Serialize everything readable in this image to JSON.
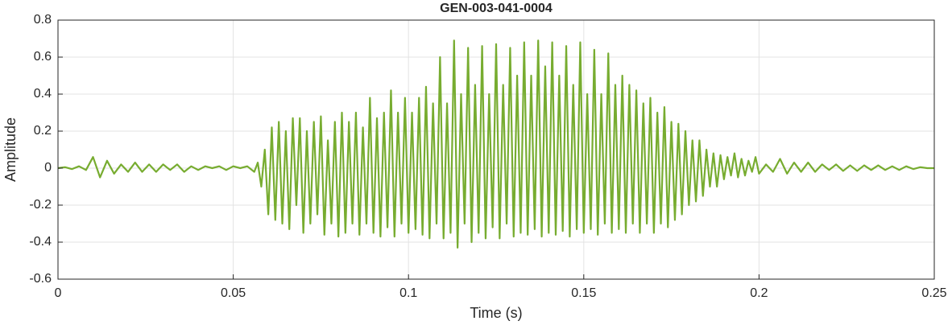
{
  "chart_data": {
    "type": "line",
    "title": "GEN-003-041-0004",
    "x_label": "Time (s)",
    "y_label": "Amplitude",
    "color": "#77ac30",
    "grid": true,
    "xlim": [
      0,
      0.25
    ],
    "xticks": [
      0,
      0.05,
      0.1,
      0.15,
      0.2,
      0.25
    ],
    "ylim": [
      -0.6,
      0.8
    ],
    "yticks": [
      -0.6,
      -0.4,
      -0.2,
      0,
      0.2,
      0.4,
      0.6,
      0.8
    ],
    "x": [
      0,
      0.002,
      0.004,
      0.006,
      0.008,
      0.01,
      0.012,
      0.014,
      0.016,
      0.018,
      0.02,
      0.022,
      0.024,
      0.026,
      0.028,
      0.03,
      0.032,
      0.034,
      0.036,
      0.038,
      0.04,
      0.042,
      0.044,
      0.046,
      0.048,
      0.05,
      0.052,
      0.054,
      0.056,
      0.057,
      0.058,
      0.059,
      0.06,
      0.061,
      0.062,
      0.063,
      0.064,
      0.065,
      0.066,
      0.067,
      0.068,
      0.069,
      0.07,
      0.071,
      0.072,
      0.073,
      0.074,
      0.075,
      0.076,
      0.077,
      0.078,
      0.079,
      0.08,
      0.081,
      0.082,
      0.083,
      0.084,
      0.085,
      0.086,
      0.087,
      0.088,
      0.089,
      0.09,
      0.091,
      0.092,
      0.093,
      0.094,
      0.095,
      0.096,
      0.097,
      0.098,
      0.099,
      0.1,
      0.101,
      0.102,
      0.103,
      0.104,
      0.105,
      0.106,
      0.107,
      0.108,
      0.109,
      0.11,
      0.111,
      0.112,
      0.113,
      0.114,
      0.115,
      0.116,
      0.117,
      0.118,
      0.119,
      0.12,
      0.121,
      0.122,
      0.123,
      0.124,
      0.125,
      0.126,
      0.127,
      0.128,
      0.129,
      0.13,
      0.131,
      0.132,
      0.133,
      0.134,
      0.135,
      0.136,
      0.137,
      0.138,
      0.139,
      0.14,
      0.141,
      0.142,
      0.143,
      0.144,
      0.145,
      0.146,
      0.147,
      0.148,
      0.149,
      0.15,
      0.151,
      0.152,
      0.153,
      0.154,
      0.155,
      0.156,
      0.157,
      0.158,
      0.159,
      0.16,
      0.161,
      0.162,
      0.163,
      0.164,
      0.165,
      0.166,
      0.167,
      0.168,
      0.169,
      0.17,
      0.171,
      0.172,
      0.173,
      0.174,
      0.175,
      0.176,
      0.177,
      0.178,
      0.179,
      0.18,
      0.181,
      0.182,
      0.183,
      0.184,
      0.185,
      0.186,
      0.187,
      0.188,
      0.189,
      0.19,
      0.191,
      0.192,
      0.193,
      0.194,
      0.195,
      0.196,
      0.197,
      0.198,
      0.199,
      0.2,
      0.202,
      0.204,
      0.206,
      0.208,
      0.21,
      0.212,
      0.214,
      0.216,
      0.218,
      0.22,
      0.222,
      0.224,
      0.226,
      0.228,
      0.23,
      0.232,
      0.234,
      0.236,
      0.238,
      0.24,
      0.242,
      0.244,
      0.246,
      0.248,
      0.25
    ],
    "values": [
      0,
      0.005,
      -0.005,
      0.01,
      -0.01,
      0.06,
      -0.05,
      0.04,
      -0.03,
      0.02,
      -0.02,
      0.03,
      -0.02,
      0.02,
      -0.02,
      0.02,
      -0.01,
      0.02,
      -0.02,
      0.01,
      -0.01,
      0.01,
      0,
      0.01,
      -0.01,
      0.01,
      0,
      0.01,
      -0.02,
      0.03,
      -0.1,
      0.1,
      -0.25,
      0.22,
      -0.28,
      0.25,
      -0.3,
      0.2,
      -0.33,
      0.27,
      -0.2,
      0.27,
      -0.35,
      0.2,
      -0.3,
      0.25,
      -0.25,
      0.28,
      -0.36,
      0.15,
      -0.3,
      0.25,
      -0.37,
      0.3,
      -0.35,
      0.25,
      -0.3,
      0.3,
      -0.36,
      0.22,
      -0.3,
      0.38,
      -0.35,
      0.27,
      -0.37,
      0.3,
      -0.32,
      0.42,
      -0.37,
      0.3,
      -0.3,
      0.38,
      -0.35,
      0.3,
      -0.33,
      0.38,
      -0.36,
      0.44,
      -0.38,
      0.35,
      -0.3,
      0.6,
      -0.38,
      0.35,
      -0.35,
      0.69,
      -0.43,
      0.4,
      -0.3,
      0.65,
      -0.4,
      0.45,
      -0.35,
      0.66,
      -0.38,
      0.4,
      -0.32,
      0.67,
      -0.38,
      0.45,
      -0.3,
      0.65,
      -0.37,
      0.5,
      -0.35,
      0.68,
      -0.36,
      0.5,
      -0.33,
      0.69,
      -0.37,
      0.55,
      -0.35,
      0.68,
      -0.36,
      0.5,
      -0.34,
      0.66,
      -0.37,
      0.45,
      -0.33,
      0.68,
      -0.35,
      0.4,
      -0.33,
      0.64,
      -0.36,
      0.4,
      -0.3,
      0.62,
      -0.35,
      0.45,
      -0.33,
      0.5,
      -0.35,
      0.45,
      -0.3,
      0.42,
      -0.35,
      0.35,
      -0.3,
      0.38,
      -0.35,
      0.3,
      -0.3,
      0.33,
      -0.32,
      0.25,
      -0.28,
      0.24,
      -0.25,
      0.2,
      -0.2,
      0.15,
      -0.18,
      0.15,
      -0.15,
      0.1,
      -0.1,
      0.08,
      -0.1,
      0.07,
      -0.06,
      0.06,
      -0.04,
      0.08,
      -0.05,
      0.05,
      -0.04,
      0.04,
      -0.02,
      0.06,
      -0.03,
      0.02,
      -0.02,
      0.05,
      -0.03,
      0.03,
      -0.02,
      0.03,
      -0.02,
      0.02,
      -0.01,
      0.02,
      -0.015,
      0.015,
      -0.015,
      0.015,
      -0.01,
      0.015,
      -0.01,
      0.01,
      -0.01,
      0.01,
      -0.005,
      0.005,
      0,
      0
    ]
  }
}
